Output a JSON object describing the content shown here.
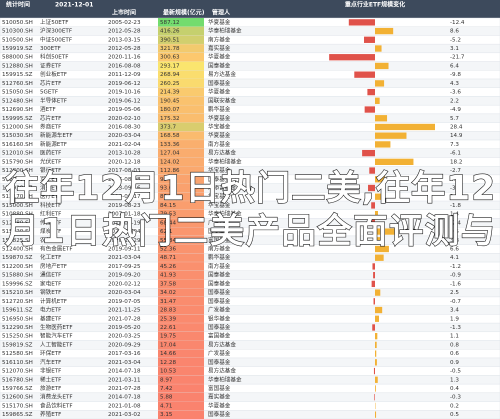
{
  "header": {
    "label": "统计时间",
    "date": "2021-12-01",
    "columns": [
      "上市时间",
      "最新规模(亿元)",
      "管理人"
    ],
    "panel_title": "重点行业ETF规模变化"
  },
  "overlay": {
    "line1": "往年12月1日热门二美,往年12",
    "line2": "月1日热门二美产品全面评测与"
  },
  "table": {
    "rows": [
      [
        "510050.SH",
        "上证50ETF",
        "2005-02-23",
        587.12,
        "华夏基金",
        -12.4
      ],
      [
        "510300.SH",
        "沪深300ETF",
        "2012-05-28",
        416.26,
        "华泰柏瑞基金",
        8.6
      ],
      [
        "510500.SH",
        "中证500ETF",
        "2013-03-15",
        390.51,
        "南方基金",
        -5.2
      ],
      [
        "159919.SZ",
        "300ETF",
        "2012-05-28",
        321.78,
        "嘉实基金",
        3.1
      ],
      [
        "588000.SH",
        "科创50ETF",
        "2020-11-16",
        300.63,
        "华夏基金",
        -21.7
      ],
      [
        "512880.SH",
        "证券ETF",
        "2016-08-08",
        293.17,
        "国泰基金",
        6.4
      ],
      [
        "159915.SZ",
        "创业板ETF",
        "2011-12-09",
        268.94,
        "易方达基金",
        -9.8
      ],
      [
        "512760.SH",
        "芯片ETF",
        "2019-06-12",
        260.25,
        "国泰基金",
        4.3
      ],
      [
        "515050.SH",
        "5GETF",
        "2019-10-16",
        214.39,
        "华夏基金",
        -3.6
      ],
      [
        "512480.SH",
        "半导体ETF",
        "2019-06-12",
        190.45,
        "国联安基金",
        2.2
      ],
      [
        "512690.SH",
        "酒ETF",
        "2019-05-06",
        180.07,
        "鹏华基金",
        -4.9
      ],
      [
        "159995.SZ",
        "芯片ETF",
        "2020-02-10",
        175.32,
        "华夏基金",
        5.7
      ],
      [
        "512000.SH",
        "券商ETF",
        "2016-08-30",
        373.7,
        "华宝基金",
        28.4
      ],
      [
        "515030.SH",
        "新能源车ETF",
        "2020-03-04",
        168.58,
        "华夏基金",
        14.9
      ],
      [
        "516160.SH",
        "新能源ETF",
        "2021-02-04",
        133.36,
        "南方基金",
        7.3
      ],
      [
        "512010.SH",
        "医药ETF",
        "2013-10-28",
        127.04,
        "易方达基金",
        -6.1
      ],
      [
        "515790.SH",
        "光伏ETF",
        "2020-12-18",
        124.02,
        "华泰柏瑞基金",
        18.2
      ],
      [
        "512800.SH",
        "银行ETF",
        "2017-08-03",
        112.86,
        "华宝基金",
        -2.7
      ],
      [
        "512660.SH",
        "军工ETF",
        "2016-08-08",
        98.34,
        "国泰基金",
        4.8
      ],
      [
        "159928.SZ",
        "消费ETF",
        "2013-09-16",
        93.61,
        "汇添富基金",
        -3.3
      ],
      [
        "512170.SH",
        "医疗ETF",
        "2019-06-17",
        89.27,
        "华宝基金",
        2.9
      ],
      [
        "515000.SH",
        "科技ETF",
        "2019-08-23",
        84.15,
        "华宝基金",
        -1.8
      ],
      [
        "510880.SH",
        "红利ETF",
        "2007-01-18",
        79.53,
        "华泰柏瑞基金",
        1.4
      ],
      [
        "512980.SH",
        "传媒ETF",
        "2018-01-19",
        68.44,
        "广发基金",
        -2.4
      ],
      [
        "515220.SH",
        "煤炭ETF",
        "2020-03-04",
        62.1,
        "国泰基金",
        9.5
      ],
      [
        "159825.SZ",
        "农业ETF",
        "2020-12-29",
        55.84,
        "富国基金",
        3.8
      ],
      [
        "512400.SH",
        "有色金属ETF",
        "2019-09-11",
        52.36,
        "南方基金",
        6.6
      ],
      [
        "159870.SZ",
        "化工ETF",
        "2021-03-04",
        48.71,
        "鹏华基金",
        4.1
      ],
      [
        "512200.SH",
        "房地产ETF",
        "2017-09-25",
        45.26,
        "南方基金",
        -1.2
      ],
      [
        "515880.SH",
        "通信ETF",
        "2019-09-20",
        41.93,
        "国泰基金",
        -0.9
      ],
      [
        "159996.SZ",
        "家电ETF",
        "2020-02-12",
        37.58,
        "国泰基金",
        -1.6
      ],
      [
        "515210.SH",
        "钢铁ETF",
        "2020-03-04",
        34.02,
        "国泰基金",
        2.5
      ],
      [
        "512720.SH",
        "计算机ETF",
        "2019-07-05",
        31.47,
        "国泰基金",
        -0.7
      ],
      [
        "159611.SZ",
        "电力ETF",
        "2021-11-25",
        28.83,
        "广发基金",
        3.4
      ],
      [
        "516950.SH",
        "基建ETF",
        "2021-07-28",
        25.39,
        "银华基金",
        1.9
      ],
      [
        "512290.SH",
        "生物医药ETF",
        "2019-05-20",
        22.61,
        "国泰基金",
        -1.3
      ],
      [
        "515250.SH",
        "智能汽车ETF",
        "2020-03-25",
        19.75,
        "富国基金",
        1.1
      ],
      [
        "159819.SZ",
        "人工智能ETF",
        "2020-09-29",
        17.04,
        "易方达基金",
        0.8
      ],
      [
        "512580.SH",
        "环保ETF",
        "2017-03-16",
        14.66,
        "广发基金",
        0.6
      ],
      [
        "516110.SH",
        "汽车ETF",
        "2021-03-04",
        12.28,
        "国泰基金",
        0.9
      ],
      [
        "512070.SH",
        "非银ETF",
        "2014-07-18",
        10.53,
        "易方达基金",
        -0.5
      ],
      [
        "516780.SH",
        "稀土ETF",
        "2021-03-11",
        8.97,
        "华泰柏瑞基金",
        1.3
      ],
      [
        "159766.SZ",
        "旅游ETF",
        "2021-07-28",
        7.42,
        "富国基金",
        0.4
      ],
      [
        "512600.SH",
        "消费龙头ETF",
        "2014-07-18",
        5.88,
        "嘉实基金",
        -0.3
      ],
      [
        "515170.SH",
        "食品饮料ETF",
        "2021-01-08",
        4.71,
        "华夏基金",
        0.2
      ],
      [
        "159865.SZ",
        "养殖ETF",
        "2021-03-02",
        3.15,
        "国泰基金",
        0.5
      ]
    ]
  }
}
